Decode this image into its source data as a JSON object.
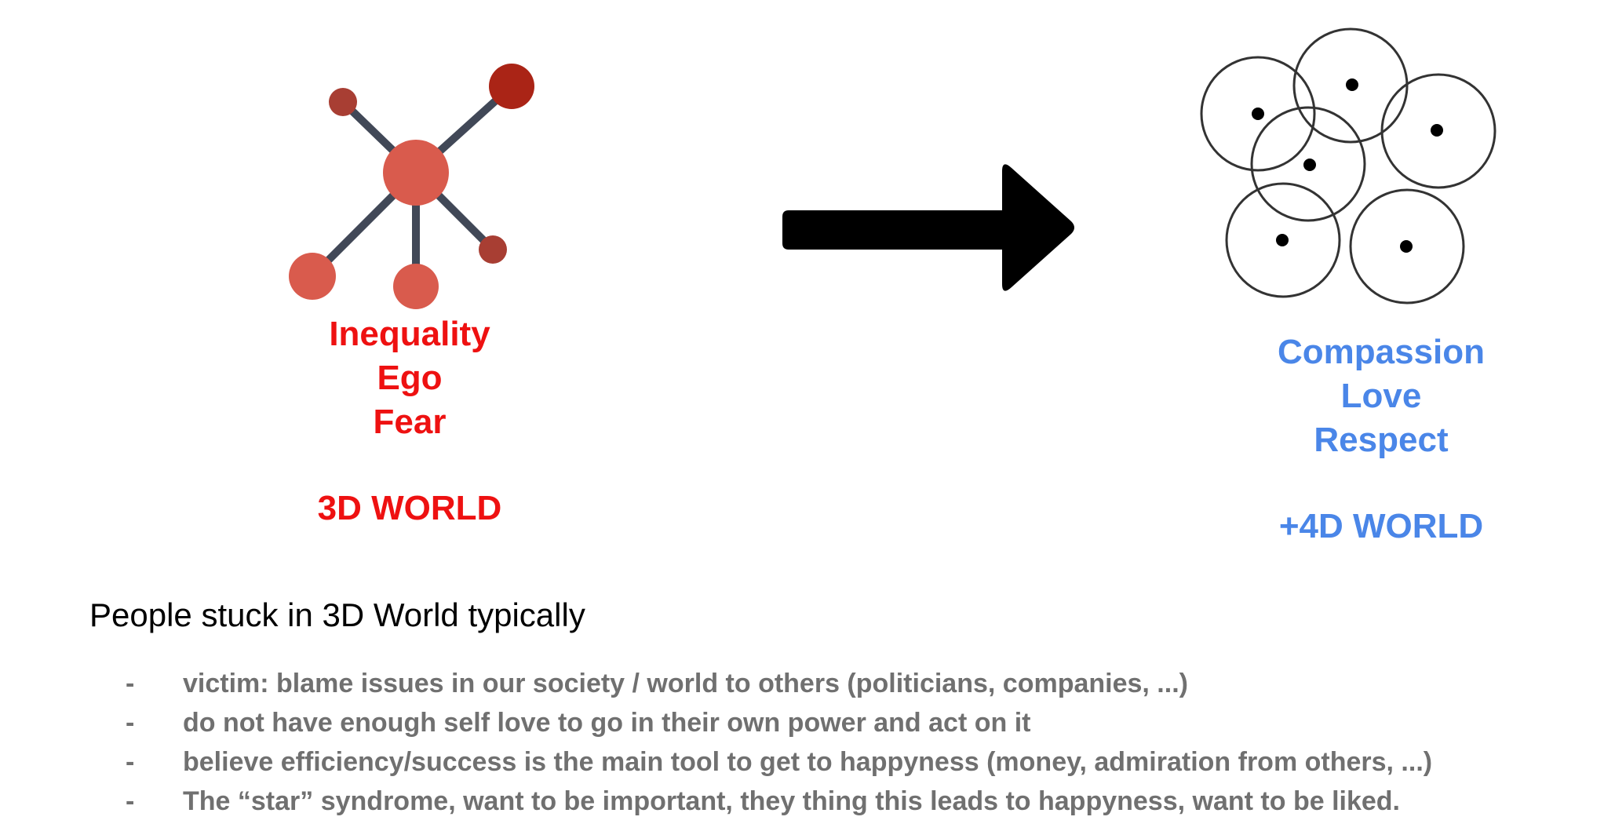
{
  "left_panel": {
    "icon": "molecule-network-icon",
    "words": [
      "Inequality",
      "Ego",
      "Fear"
    ],
    "world_label": "3D WORLD",
    "color": "#ee1111",
    "node_colors": [
      "#d95b4d",
      "#a83e33",
      "#aa2416"
    ],
    "link_color": "#414857"
  },
  "arrow": {
    "icon": "right-arrow-icon",
    "color": "#000000"
  },
  "right_panel": {
    "icon": "overlapping-circles-icon",
    "words": [
      "Compassion",
      "Love",
      "Respect"
    ],
    "world_label": "+4D WORLD",
    "color": "#4a86e8"
  },
  "section": {
    "heading": "People stuck in 3D World typically",
    "bullet_symbol": "-",
    "bullets": [
      "victim: blame issues in our society / world to others (politicians, companies, ...)",
      "do not have enough self love to go in their own power and act on it",
      "believe efficiency/success is the main tool to get to happyness (money, admiration from others, ...)",
      "The “star” syndrome, want to be important, they thing this leads to happyness, want to be liked."
    ],
    "text_color": "#707070"
  }
}
